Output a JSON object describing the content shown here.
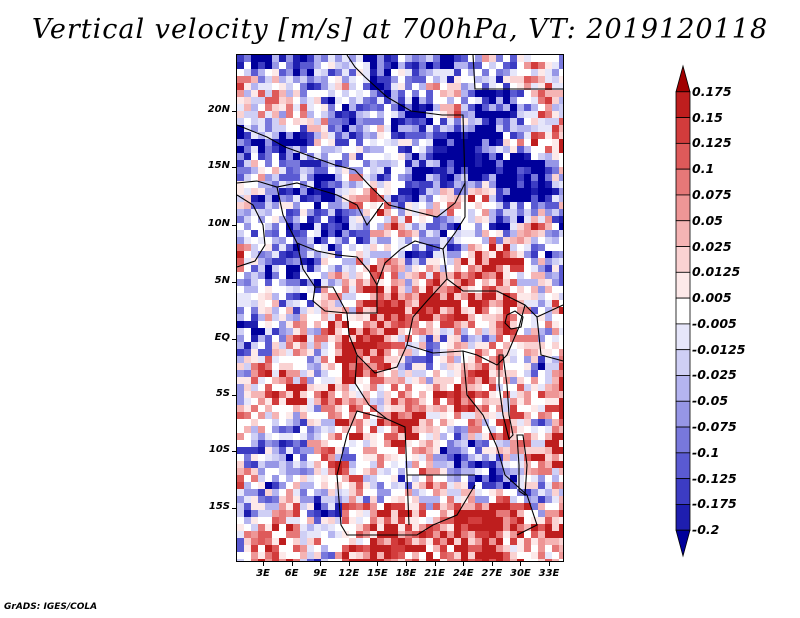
{
  "title": "Vertical velocity [m/s] at 700hPa, VT: 2019120118",
  "footer": "GrADS: IGES/COLA",
  "map": {
    "lat_ticks": [
      "20N",
      "15N",
      "10N",
      "5N",
      "EQ",
      "5S",
      "10S",
      "15S"
    ],
    "lon_ticks": [
      "3E",
      "6E",
      "9E",
      "12E",
      "15E",
      "18E",
      "21E",
      "24E",
      "27E",
      "30E",
      "33E"
    ]
  },
  "colorbar": {
    "labels": [
      "0.175",
      "0.15",
      "0.125",
      "0.1",
      "0.075",
      "0.05",
      "0.025",
      "0.0125",
      "0.005",
      "-0.005",
      "-0.0125",
      "-0.025",
      "-0.05",
      "-0.075",
      "-0.1",
      "-0.125",
      "-0.175",
      "-0.2"
    ],
    "colors": [
      "#a00000",
      "#be1e1e",
      "#d23c3c",
      "#de5a5a",
      "#e67878",
      "#ee9696",
      "#f5b4b4",
      "#fad2d2",
      "#fde9e9",
      "#ffffff",
      "#e6e6fa",
      "#cfcff5",
      "#b4b4f0",
      "#9696e6",
      "#7878dc",
      "#5a5ad2",
      "#3c3cc3",
      "#1e1eaf",
      "#00009b"
    ]
  }
}
